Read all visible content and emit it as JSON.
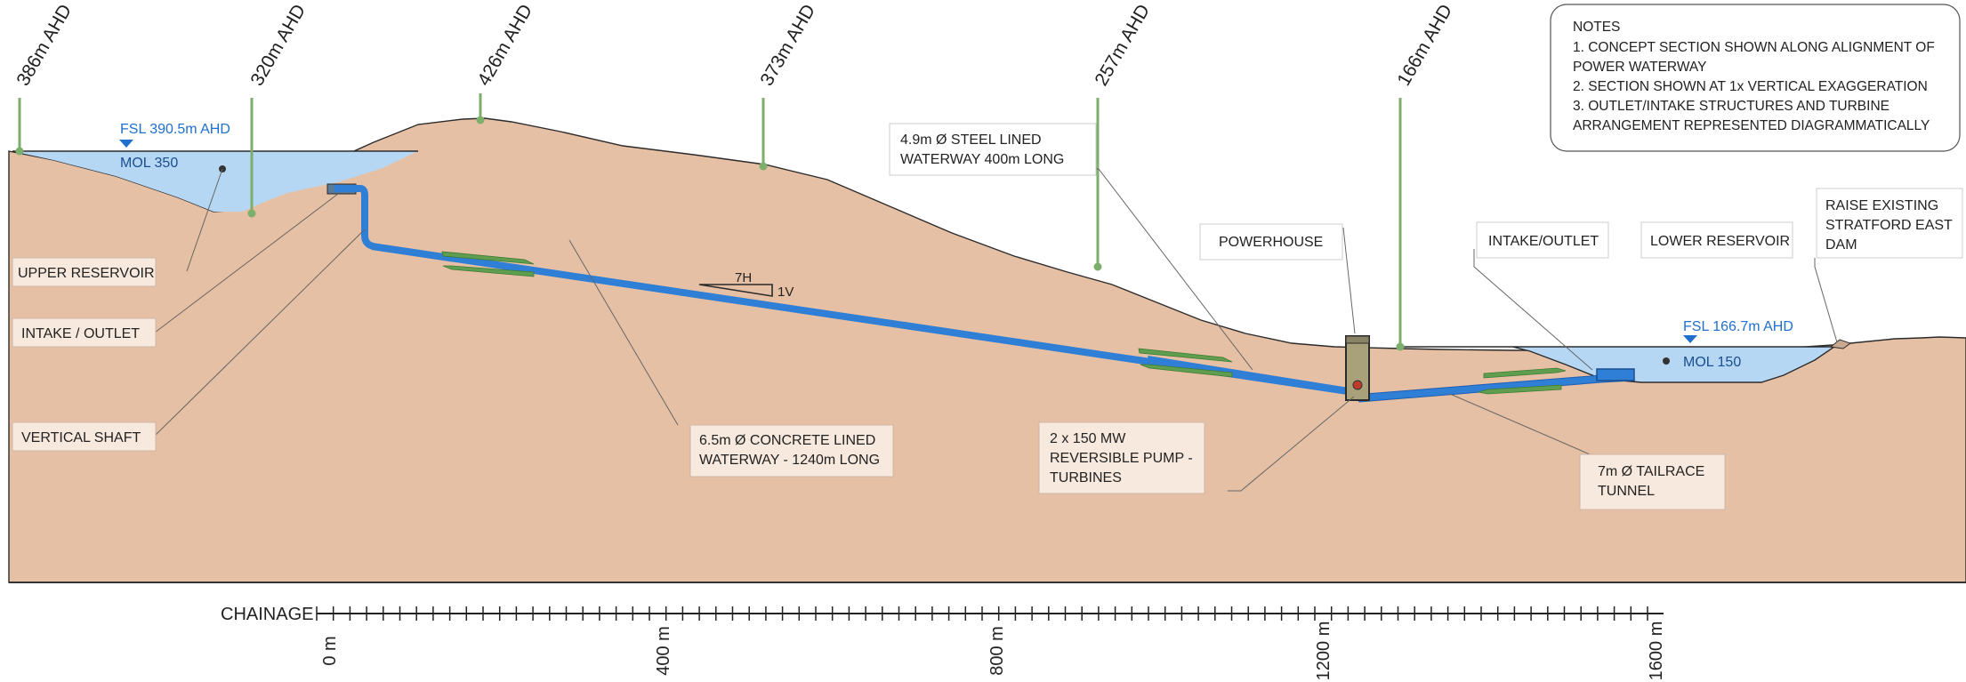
{
  "elevation_markers": [
    {
      "label": "386m AHD"
    },
    {
      "label": "320m AHD"
    },
    {
      "label": "426m AHD"
    },
    {
      "label": "373m AHD"
    },
    {
      "label": "257m AHD"
    },
    {
      "label": "166m AHD"
    }
  ],
  "upper_reservoir": {
    "fsl": "FSL 390.5m AHD",
    "mol": "MOL 350"
  },
  "lower_reservoir_levels": {
    "fsl": "FSL 166.7m AHD",
    "mol": "MOL 150"
  },
  "slope": {
    "h": "7H",
    "v": "1V"
  },
  "callouts": {
    "upper_reservoir": "UPPER RESERVOIR",
    "intake_outlet_upper": "INTAKE / OUTLET",
    "vertical_shaft": "VERTICAL SHAFT",
    "concrete_waterway": [
      "6.5m Ø CONCRETE LINED",
      "WATERWAY -  1240m LONG"
    ],
    "steel_waterway": [
      "4.9m Ø STEEL LINED",
      "WATERWAY 400m LONG"
    ],
    "powerhouse": "POWERHOUSE",
    "pump_turbines": [
      "2 x 150 MW",
      "REVERSIBLE PUMP -",
      "TURBINES"
    ],
    "intake_outlet_lower": "INTAKE/OUTLET",
    "lower_reservoir": "LOWER RESERVOIR",
    "raise_dam": [
      "RAISE EXISTING",
      "STRATFORD EAST",
      "DAM"
    ],
    "tailrace": [
      "7m Ø TAILRACE",
      "TUNNEL"
    ]
  },
  "notes": {
    "title": "NOTES",
    "lines": [
      "1.  CONCEPT SECTION SHOWN ALONG ALIGNMENT OF",
      "POWER WATERWAY",
      "2.  SECTION SHOWN AT 1x VERTICAL EXAGGERATION",
      "3.  OUTLET/INTAKE STRUCTURES AND TURBINE",
      "ARRANGEMENT REPRESENTED DIAGRAMMATICALLY"
    ]
  },
  "chainage": {
    "label": "CHAINAGE",
    "ticks": [
      "0 m",
      "400 m",
      "800 m",
      "1200 m",
      "1600 m"
    ]
  },
  "colors": {
    "ground": "#e6c0a5",
    "water": "#b5d7f4",
    "waterway": "#2f7fd6",
    "marker": "#7cae6c",
    "arrow": "#5f9e4f",
    "label_box": "#f7e9dd",
    "outline": "#2b2b2b"
  }
}
